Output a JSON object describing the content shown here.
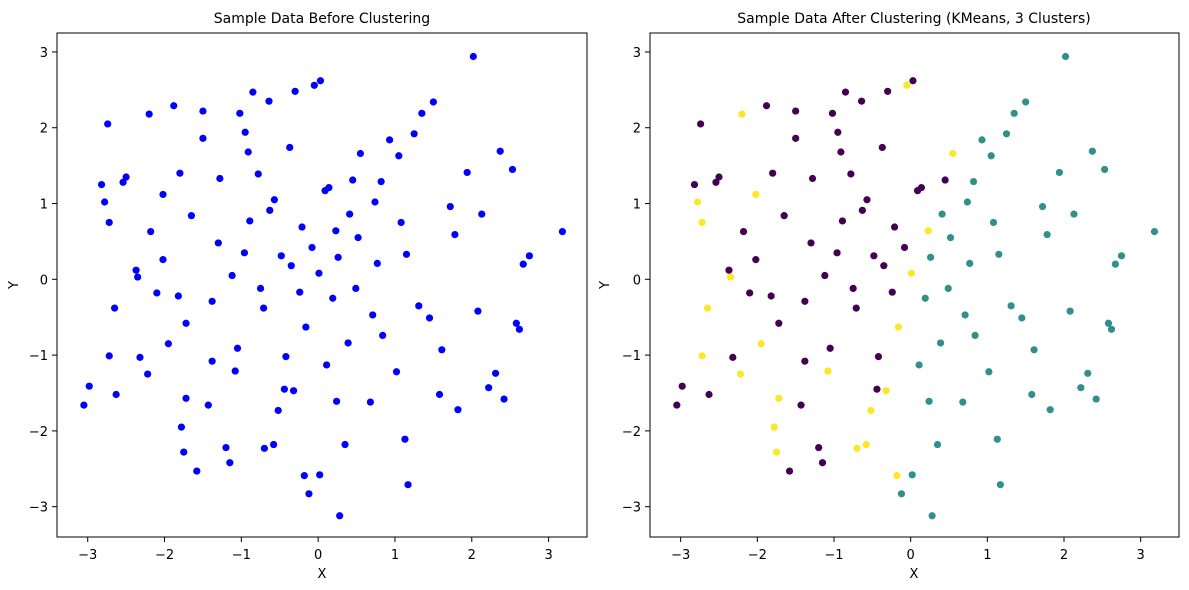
{
  "chart_data": [
    {
      "type": "scatter",
      "title": "Sample Data Before Clustering",
      "xlabel": "X",
      "ylabel": "Y",
      "xlim": [
        -3.4,
        3.5
      ],
      "ylim": [
        -3.4,
        3.25
      ],
      "x_ticks": [
        "−3",
        "−2",
        "−1",
        "0",
        "1",
        "2",
        "3"
      ],
      "y_ticks": [
        "−3",
        "−2",
        "−1",
        "0",
        "1",
        "2",
        "3"
      ],
      "grid": false,
      "series": [
        {
          "color": "#0000ff",
          "points": [
            [
              -3.05,
              -1.66
            ],
            [
              -2.98,
              -1.41
            ],
            [
              -2.82,
              1.25
            ],
            [
              -2.78,
              1.02
            ],
            [
              -2.74,
              2.05
            ],
            [
              -2.72,
              0.75
            ],
            [
              -2.72,
              -1.01
            ],
            [
              -2.65,
              -0.38
            ],
            [
              -2.63,
              -1.52
            ],
            [
              -2.54,
              1.28
            ],
            [
              -2.5,
              1.35
            ],
            [
              -2.32,
              -1.03
            ],
            [
              -2.35,
              0.03
            ],
            [
              -2.2,
              2.18
            ],
            [
              -2.18,
              0.63
            ],
            [
              -2.22,
              -1.25
            ],
            [
              -2.1,
              -0.18
            ],
            [
              -2.02,
              1.12
            ],
            [
              -1.95,
              -0.85
            ],
            [
              -1.88,
              2.29
            ],
            [
              -1.82,
              -0.22
            ],
            [
              -1.8,
              1.4
            ],
            [
              -1.78,
              -1.95
            ],
            [
              -1.75,
              -2.28
            ],
            [
              -1.72,
              -1.57
            ],
            [
              -1.58,
              -2.53
            ],
            [
              -1.5,
              2.22
            ],
            [
              -1.5,
              1.86
            ],
            [
              -1.43,
              -1.66
            ],
            [
              -1.38,
              -1.08
            ],
            [
              -1.28,
              1.33
            ],
            [
              -1.2,
              -2.22
            ],
            [
              -1.15,
              -2.42
            ],
            [
              -1.08,
              -1.21
            ],
            [
              -1.02,
              2.19
            ],
            [
              -0.95,
              1.94
            ],
            [
              -0.91,
              1.68
            ],
            [
              -0.85,
              2.47
            ],
            [
              -0.78,
              1.39
            ],
            [
              -0.7,
              -2.23
            ],
            [
              -0.64,
              2.35
            ],
            [
              -0.58,
              -2.18
            ],
            [
              -0.52,
              -1.73
            ],
            [
              -0.44,
              -1.45
            ],
            [
              -0.37,
              1.74
            ],
            [
              -0.3,
              2.48
            ],
            [
              -0.18,
              -2.59
            ],
            [
              -0.12,
              -2.83
            ],
            [
              -0.05,
              2.56
            ],
            [
              0.03,
              2.62
            ],
            [
              0.02,
              -2.58
            ],
            [
              0.14,
              1.21
            ],
            [
              0.23,
              0.64
            ],
            [
              0.28,
              -3.12
            ],
            [
              0.35,
              -2.18
            ],
            [
              0.45,
              1.31
            ],
            [
              0.55,
              1.66
            ],
            [
              0.68,
              -1.62
            ],
            [
              0.82,
              1.29
            ],
            [
              0.93,
              1.84
            ],
            [
              1.05,
              1.63
            ],
            [
              1.13,
              -2.11
            ],
            [
              1.17,
              -2.71
            ],
            [
              1.25,
              1.92
            ],
            [
              1.35,
              2.19
            ],
            [
              1.5,
              2.34
            ],
            [
              1.58,
              -1.52
            ],
            [
              1.72,
              0.96
            ],
            [
              1.82,
              -1.72
            ],
            [
              1.94,
              1.41
            ],
            [
              2.02,
              2.94
            ],
            [
              2.08,
              -0.42
            ],
            [
              2.13,
              0.86
            ],
            [
              2.22,
              -1.43
            ],
            [
              2.31,
              -1.24
            ],
            [
              2.37,
              1.69
            ],
            [
              2.42,
              -1.58
            ],
            [
              2.53,
              1.45
            ],
            [
              2.58,
              -0.58
            ],
            [
              2.62,
              -0.66
            ],
            [
              2.67,
              0.2
            ],
            [
              2.75,
              0.31
            ],
            [
              3.18,
              0.63
            ],
            [
              -2.37,
              0.12
            ],
            [
              -2.02,
              0.26
            ],
            [
              -1.65,
              0.84
            ],
            [
              -1.3,
              0.48
            ],
            [
              -0.96,
              0.35
            ],
            [
              -0.63,
              0.91
            ],
            [
              -0.35,
              0.18
            ],
            [
              -0.08,
              0.42
            ],
            [
              0.19,
              -0.25
            ],
            [
              0.52,
              0.55
            ],
            [
              0.84,
              -0.74
            ],
            [
              1.15,
              0.33
            ],
            [
              1.45,
              -0.51
            ],
            [
              1.78,
              0.59
            ],
            [
              -1.72,
              -0.58
            ],
            [
              -1.38,
              -0.29
            ],
            [
              -1.05,
              -0.91
            ],
            [
              -0.71,
              -0.38
            ],
            [
              -0.42,
              -1.02
            ],
            [
              -0.16,
              -0.63
            ],
            [
              0.11,
              -1.13
            ],
            [
              0.39,
              -0.84
            ],
            [
              0.71,
              -0.47
            ],
            [
              1.02,
              -1.22
            ],
            [
              1.31,
              -0.35
            ],
            [
              1.61,
              -0.93
            ],
            [
              -0.89,
              0.77
            ],
            [
              -0.57,
              1.05
            ],
            [
              -0.21,
              0.69
            ],
            [
              0.09,
              1.17
            ],
            [
              0.41,
              0.86
            ],
            [
              0.74,
              1.02
            ],
            [
              1.08,
              0.75
            ],
            [
              -0.75,
              -0.12
            ],
            [
              -0.48,
              0.31
            ],
            [
              -0.24,
              -0.17
            ],
            [
              0.01,
              0.08
            ],
            [
              0.26,
              0.29
            ],
            [
              0.49,
              -0.12
            ],
            [
              0.77,
              0.21
            ],
            [
              -1.12,
              0.05
            ],
            [
              -0.32,
              -1.47
            ],
            [
              0.24,
              -1.61
            ]
          ]
        }
      ]
    },
    {
      "type": "scatter",
      "title": "Sample Data After Clustering (KMeans, 3 Clusters)",
      "xlabel": "X",
      "ylabel": "Y",
      "xlim": [
        -3.4,
        3.5
      ],
      "ylim": [
        -3.4,
        3.25
      ],
      "x_ticks": [
        "−3",
        "−2",
        "−1",
        "0",
        "1",
        "2",
        "3"
      ],
      "y_ticks": [
        "−3",
        "−2",
        "−1",
        "0",
        "1",
        "2",
        "3"
      ],
      "grid": false,
      "series": [
        {
          "color": "#440154",
          "points": [
            [
              -3.05,
              -1.66
            ],
            [
              -2.98,
              -1.41
            ],
            [
              -2.82,
              1.25
            ],
            [
              -2.74,
              2.05
            ],
            [
              -2.63,
              -1.52
            ],
            [
              -2.54,
              1.28
            ],
            [
              -2.5,
              1.35
            ],
            [
              -2.32,
              -1.03
            ],
            [
              -2.18,
              0.63
            ],
            [
              -2.1,
              -0.18
            ],
            [
              -1.88,
              2.29
            ],
            [
              -1.82,
              -0.22
            ],
            [
              -1.8,
              1.4
            ],
            [
              -1.58,
              -2.53
            ],
            [
              -1.5,
              2.22
            ],
            [
              -1.5,
              1.86
            ],
            [
              -1.43,
              -1.66
            ],
            [
              -1.38,
              -1.08
            ],
            [
              -1.28,
              1.33
            ],
            [
              -1.2,
              -2.22
            ],
            [
              -1.15,
              -2.42
            ],
            [
              -1.02,
              2.19
            ],
            [
              -0.95,
              1.94
            ],
            [
              -0.91,
              1.68
            ],
            [
              -0.85,
              2.47
            ],
            [
              -0.78,
              1.39
            ],
            [
              -0.64,
              2.35
            ],
            [
              -0.44,
              -1.45
            ],
            [
              -0.37,
              1.74
            ],
            [
              -0.3,
              2.48
            ],
            [
              0.03,
              2.62
            ],
            [
              0.14,
              1.21
            ],
            [
              0.45,
              1.31
            ],
            [
              -2.37,
              0.12
            ],
            [
              -2.02,
              0.26
            ],
            [
              -1.65,
              0.84
            ],
            [
              -1.3,
              0.48
            ],
            [
              -0.96,
              0.35
            ],
            [
              -0.63,
              0.91
            ],
            [
              -0.35,
              0.18
            ],
            [
              -0.08,
              0.42
            ],
            [
              -1.72,
              -0.58
            ],
            [
              -1.38,
              -0.29
            ],
            [
              -1.05,
              -0.91
            ],
            [
              -0.71,
              -0.38
            ],
            [
              -0.89,
              0.77
            ],
            [
              -0.57,
              1.05
            ],
            [
              -0.21,
              0.69
            ],
            [
              0.09,
              1.17
            ],
            [
              -0.75,
              -0.12
            ],
            [
              -0.48,
              0.31
            ],
            [
              -1.12,
              0.05
            ],
            [
              -0.24,
              -0.17
            ],
            [
              -0.42,
              -1.02
            ]
          ]
        },
        {
          "color": "#31908c",
          "points": [
            [
              -0.12,
              -2.83
            ],
            [
              0.02,
              -2.58
            ],
            [
              0.28,
              -3.12
            ],
            [
              0.35,
              -2.18
            ],
            [
              0.68,
              -1.62
            ],
            [
              0.82,
              1.29
            ],
            [
              0.93,
              1.84
            ],
            [
              1.05,
              1.63
            ],
            [
              1.13,
              -2.11
            ],
            [
              1.17,
              -2.71
            ],
            [
              1.25,
              1.92
            ],
            [
              1.35,
              2.19
            ],
            [
              1.5,
              2.34
            ],
            [
              1.58,
              -1.52
            ],
            [
              1.72,
              0.96
            ],
            [
              1.82,
              -1.72
            ],
            [
              1.94,
              1.41
            ],
            [
              2.02,
              2.94
            ],
            [
              2.08,
              -0.42
            ],
            [
              2.13,
              0.86
            ],
            [
              2.22,
              -1.43
            ],
            [
              2.31,
              -1.24
            ],
            [
              2.37,
              1.69
            ],
            [
              2.42,
              -1.58
            ],
            [
              2.53,
              1.45
            ],
            [
              2.58,
              -0.58
            ],
            [
              2.62,
              -0.66
            ],
            [
              2.67,
              0.2
            ],
            [
              2.75,
              0.31
            ],
            [
              3.18,
              0.63
            ],
            [
              0.19,
              -0.25
            ],
            [
              0.52,
              0.55
            ],
            [
              0.84,
              -0.74
            ],
            [
              1.15,
              0.33
            ],
            [
              1.45,
              -0.51
            ],
            [
              1.78,
              0.59
            ],
            [
              0.11,
              -1.13
            ],
            [
              0.39,
              -0.84
            ],
            [
              0.71,
              -0.47
            ],
            [
              1.02,
              -1.22
            ],
            [
              1.31,
              -0.35
            ],
            [
              1.61,
              -0.93
            ],
            [
              0.41,
              0.86
            ],
            [
              0.74,
              1.02
            ],
            [
              1.08,
              0.75
            ],
            [
              0.26,
              0.29
            ],
            [
              0.49,
              -0.12
            ],
            [
              0.77,
              0.21
            ],
            [
              0.24,
              -1.61
            ]
          ]
        },
        {
          "color": "#fde725",
          "points": [
            [
              -2.78,
              1.02
            ],
            [
              -2.72,
              0.75
            ],
            [
              -2.72,
              -1.01
            ],
            [
              -2.65,
              -0.38
            ],
            [
              -2.35,
              0.03
            ],
            [
              -2.22,
              -1.25
            ],
            [
              -2.2,
              2.18
            ],
            [
              -2.02,
              1.12
            ],
            [
              -1.95,
              -0.85
            ],
            [
              -1.78,
              -1.95
            ],
            [
              -1.75,
              -2.28
            ],
            [
              -1.72,
              -1.57
            ],
            [
              -1.08,
              -1.21
            ],
            [
              -0.7,
              -2.23
            ],
            [
              -0.58,
              -2.18
            ],
            [
              -0.52,
              -1.73
            ],
            [
              -0.18,
              -2.59
            ],
            [
              -0.05,
              2.56
            ],
            [
              0.23,
              0.64
            ],
            [
              0.55,
              1.66
            ],
            [
              -0.16,
              -0.63
            ],
            [
              0.01,
              0.08
            ],
            [
              -0.32,
              -1.47
            ]
          ]
        }
      ]
    }
  ]
}
